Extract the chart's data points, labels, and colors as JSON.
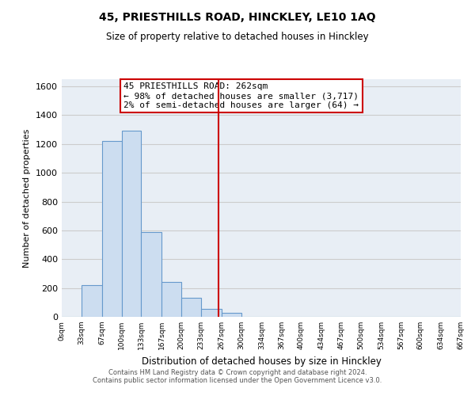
{
  "title": "45, PRIESTHILLS ROAD, HINCKLEY, LE10 1AQ",
  "subtitle": "Size of property relative to detached houses in Hinckley",
  "xlabel": "Distribution of detached houses by size in Hinckley",
  "ylabel": "Number of detached properties",
  "bar_edges": [
    0,
    33,
    67,
    100,
    133,
    167,
    200,
    233,
    267,
    300,
    334,
    367,
    400,
    434,
    467,
    500,
    534,
    567,
    600,
    634,
    667
  ],
  "bar_heights": [
    0,
    220,
    1220,
    1290,
    590,
    240,
    130,
    55,
    25,
    0,
    0,
    0,
    0,
    0,
    0,
    0,
    0,
    0,
    0,
    0
  ],
  "bar_color": "#ccddf0",
  "bar_edgecolor": "#6699cc",
  "vline_x": 262,
  "vline_color": "#cc0000",
  "annotation_line1": "45 PRIESTHILLS ROAD: 262sqm",
  "annotation_line2": "← 98% of detached houses are smaller (3,717)",
  "annotation_line3": "2% of semi-detached houses are larger (64) →",
  "annotation_box_color": "#ffffff",
  "annotation_box_edgecolor": "#cc0000",
  "ylim": [
    0,
    1650
  ],
  "yticks": [
    0,
    200,
    400,
    600,
    800,
    1000,
    1200,
    1400,
    1600
  ],
  "xtick_labels": [
    "0sqm",
    "33sqm",
    "67sqm",
    "100sqm",
    "133sqm",
    "167sqm",
    "200sqm",
    "233sqm",
    "267sqm",
    "300sqm",
    "334sqm",
    "367sqm",
    "400sqm",
    "434sqm",
    "467sqm",
    "500sqm",
    "534sqm",
    "567sqm",
    "600sqm",
    "634sqm",
    "667sqm"
  ],
  "grid_color": "#cccccc",
  "bg_color": "#e8eef5",
  "footer_line1": "Contains HM Land Registry data © Crown copyright and database right 2024.",
  "footer_line2": "Contains public sector information licensed under the Open Government Licence v3.0."
}
